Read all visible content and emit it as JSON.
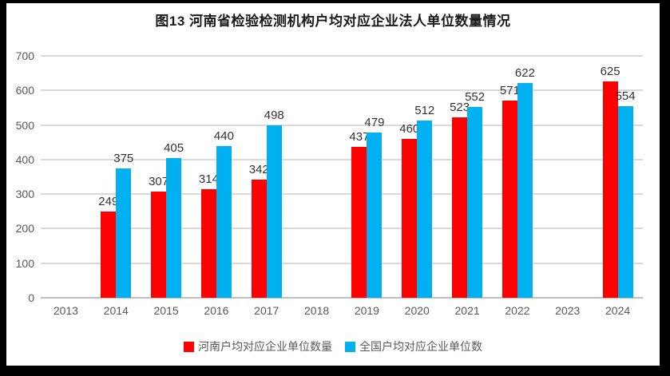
{
  "frame": {
    "border_color": "#000000",
    "background_color": "#ffffff"
  },
  "chart_data": {
    "type": "bar",
    "title": "图13  河南省检验检测机构户均对应企业法人单位数量情况",
    "categories": [
      "2013",
      "2014",
      "2015",
      "2016",
      "2017",
      "2018",
      "2019",
      "2020",
      "2021",
      "2022",
      "2023",
      "2024"
    ],
    "series": [
      {
        "name": "河南户均对应企业单位数量",
        "color": "#FF0000",
        "values": [
          null,
          249,
          307,
          314,
          342,
          null,
          437,
          460,
          523,
          571,
          null,
          625
        ]
      },
      {
        "name": "全国户均对应企业单位数",
        "color": "#00B0F0",
        "values": [
          null,
          375,
          405,
          440,
          498,
          null,
          479,
          512,
          552,
          622,
          null,
          554
        ]
      }
    ],
    "xlabel": "",
    "ylabel": "",
    "ylim": [
      0,
      700
    ],
    "yticks": [
      0,
      100,
      200,
      300,
      400,
      500,
      600,
      700
    ],
    "grid": true,
    "data_labels": true,
    "legend_position": "bottom"
  }
}
